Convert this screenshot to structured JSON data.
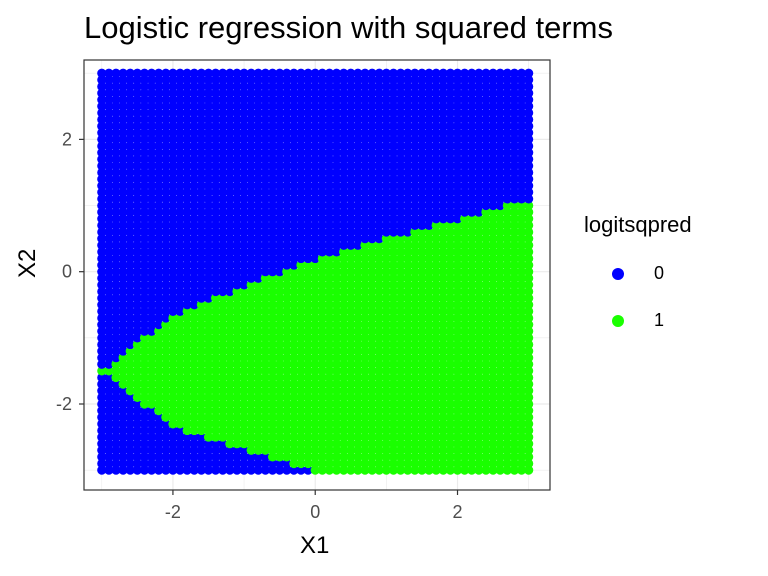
{
  "chart_data": {
    "type": "scatter",
    "title": "Logistic regression with squared terms",
    "xlabel": "X1",
    "ylabel": "X2",
    "xlim": [
      -3.25,
      3.3
    ],
    "ylim": [
      -3.3,
      3.2
    ],
    "x_ticks": [
      -2,
      0,
      2
    ],
    "y_ticks": [
      -2,
      0,
      2
    ],
    "grid": true,
    "legend": {
      "title": "logitsqpred",
      "position": "right",
      "entries": [
        {
          "label": "0",
          "color": "#0000ff"
        },
        {
          "label": "1",
          "color": "#1aff00"
        }
      ]
    },
    "series": [
      {
        "name": "0",
        "color": "#0000ff",
        "region": "outside decision boundary",
        "grid_range": {
          "x": [
            -3,
            3
          ],
          "y": [
            -3,
            3
          ]
        }
      },
      {
        "name": "1",
        "color": "#1aff00",
        "region": "inside parabolic boundary",
        "vertex": [
          -3,
          -1.5
        ],
        "boundary": [
          [
            -3,
            -1.5
          ],
          [
            -2,
            -0.65
          ],
          [
            0,
            0.2
          ],
          [
            1,
            0.5
          ],
          [
            3,
            1.1
          ]
        ],
        "lower_boundary": [
          [
            -3,
            -1.5
          ],
          [
            -2,
            -2.35
          ],
          [
            0,
            -3.0
          ],
          [
            0.25,
            -3.0
          ]
        ]
      }
    ]
  }
}
